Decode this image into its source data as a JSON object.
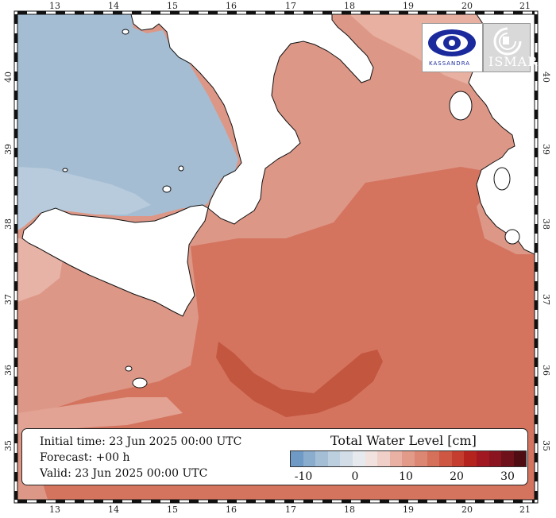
{
  "map": {
    "lon_ticks": [
      "13",
      "14",
      "15",
      "16",
      "17",
      "18",
      "19",
      "20",
      "21"
    ],
    "lat_ticks": [
      "40",
      "39",
      "38",
      "37",
      "36",
      "35"
    ]
  },
  "info": {
    "initial_time": "Initial time: 23 Jun 2025 00:00 UTC",
    "forecast": "Forecast: +00 h",
    "valid": "Valid: 23 Jun 2025 00:00 UTC"
  },
  "legend": {
    "title": "Total Water Level [cm]",
    "labels": [
      "-10",
      "0",
      "10",
      "20",
      "30"
    ],
    "colors": [
      "#6f9ac6",
      "#8aaccd",
      "#a4bed6",
      "#bccfdf",
      "#d2dde8",
      "#e6eaef",
      "#f1e2df",
      "#efcfc8",
      "#e8b1a4",
      "#e29a89",
      "#dc8774",
      "#d5705b",
      "#cd5743",
      "#c53d2e",
      "#b5231f",
      "#a11822",
      "#8a1420",
      "#6e111a",
      "#4f0d13"
    ]
  },
  "logos": {
    "left_text": "KASSANDRA",
    "right_text": "ISMAR"
  },
  "colors": {
    "land": "#ffffff",
    "tyrrhenian": "#a5bdd2",
    "sea_base": "#dd9787",
    "sea_warm": "#d2725d",
    "sea_hot": "#c45a43",
    "sea_cool": "#e9b8aa"
  }
}
